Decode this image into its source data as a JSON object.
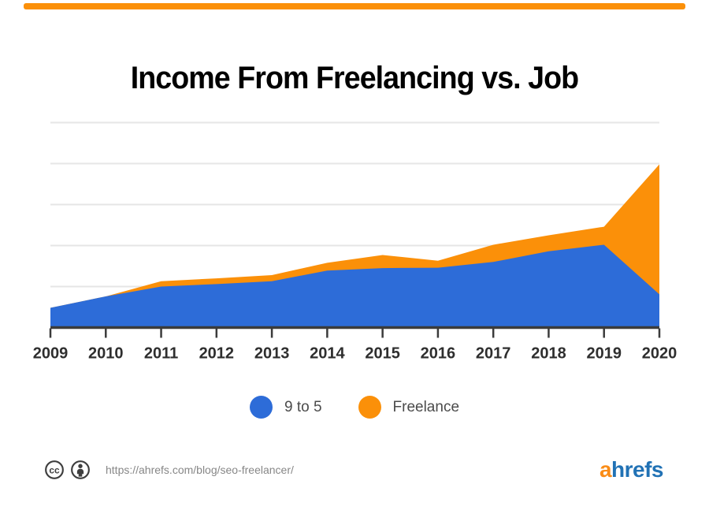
{
  "accent_bar": {
    "color": "#fb9009"
  },
  "chart_data": {
    "type": "area",
    "stacked": true,
    "title": "Income From Freelancing vs. Job",
    "categories": [
      "2009",
      "2010",
      "2011",
      "2012",
      "2013",
      "2014",
      "2015",
      "2016",
      "2017",
      "2018",
      "2019",
      "2020"
    ],
    "series": [
      {
        "name": "9 to 5",
        "color": "#2d6cd8",
        "values": [
          0.48,
          0.76,
          1.0,
          1.06,
          1.13,
          1.39,
          1.45,
          1.46,
          1.6,
          1.86,
          2.02,
          0.81
        ]
      },
      {
        "name": "Freelance",
        "color": "#fb9009",
        "values": [
          0.0,
          0.0,
          0.13,
          0.14,
          0.15,
          0.19,
          0.32,
          0.17,
          0.42,
          0.39,
          0.44,
          3.17
        ]
      }
    ],
    "xlabel": "",
    "ylabel": "",
    "y_axis": {
      "min": 0,
      "max": 5.2,
      "tick_labels_shown": false,
      "gridline_interval": 1,
      "gridline_count": 5
    },
    "grid": true,
    "legend_position": "bottom"
  },
  "colors": {
    "axis": "#3b3b3b",
    "gridline": "#e6e6e6",
    "tick_label": "#2e2e2e",
    "legend_text": "#4b4b4b",
    "url_text": "#878787",
    "icon": "#3e3e3e"
  },
  "footer": {
    "url": "https://ahrefs.com/blog/seo-freelancer/",
    "logo_prefix": "a",
    "logo_suffix": "hrefs",
    "logo_prefix_color": "#fa8c16",
    "logo_suffix_color": "#2172b5"
  }
}
